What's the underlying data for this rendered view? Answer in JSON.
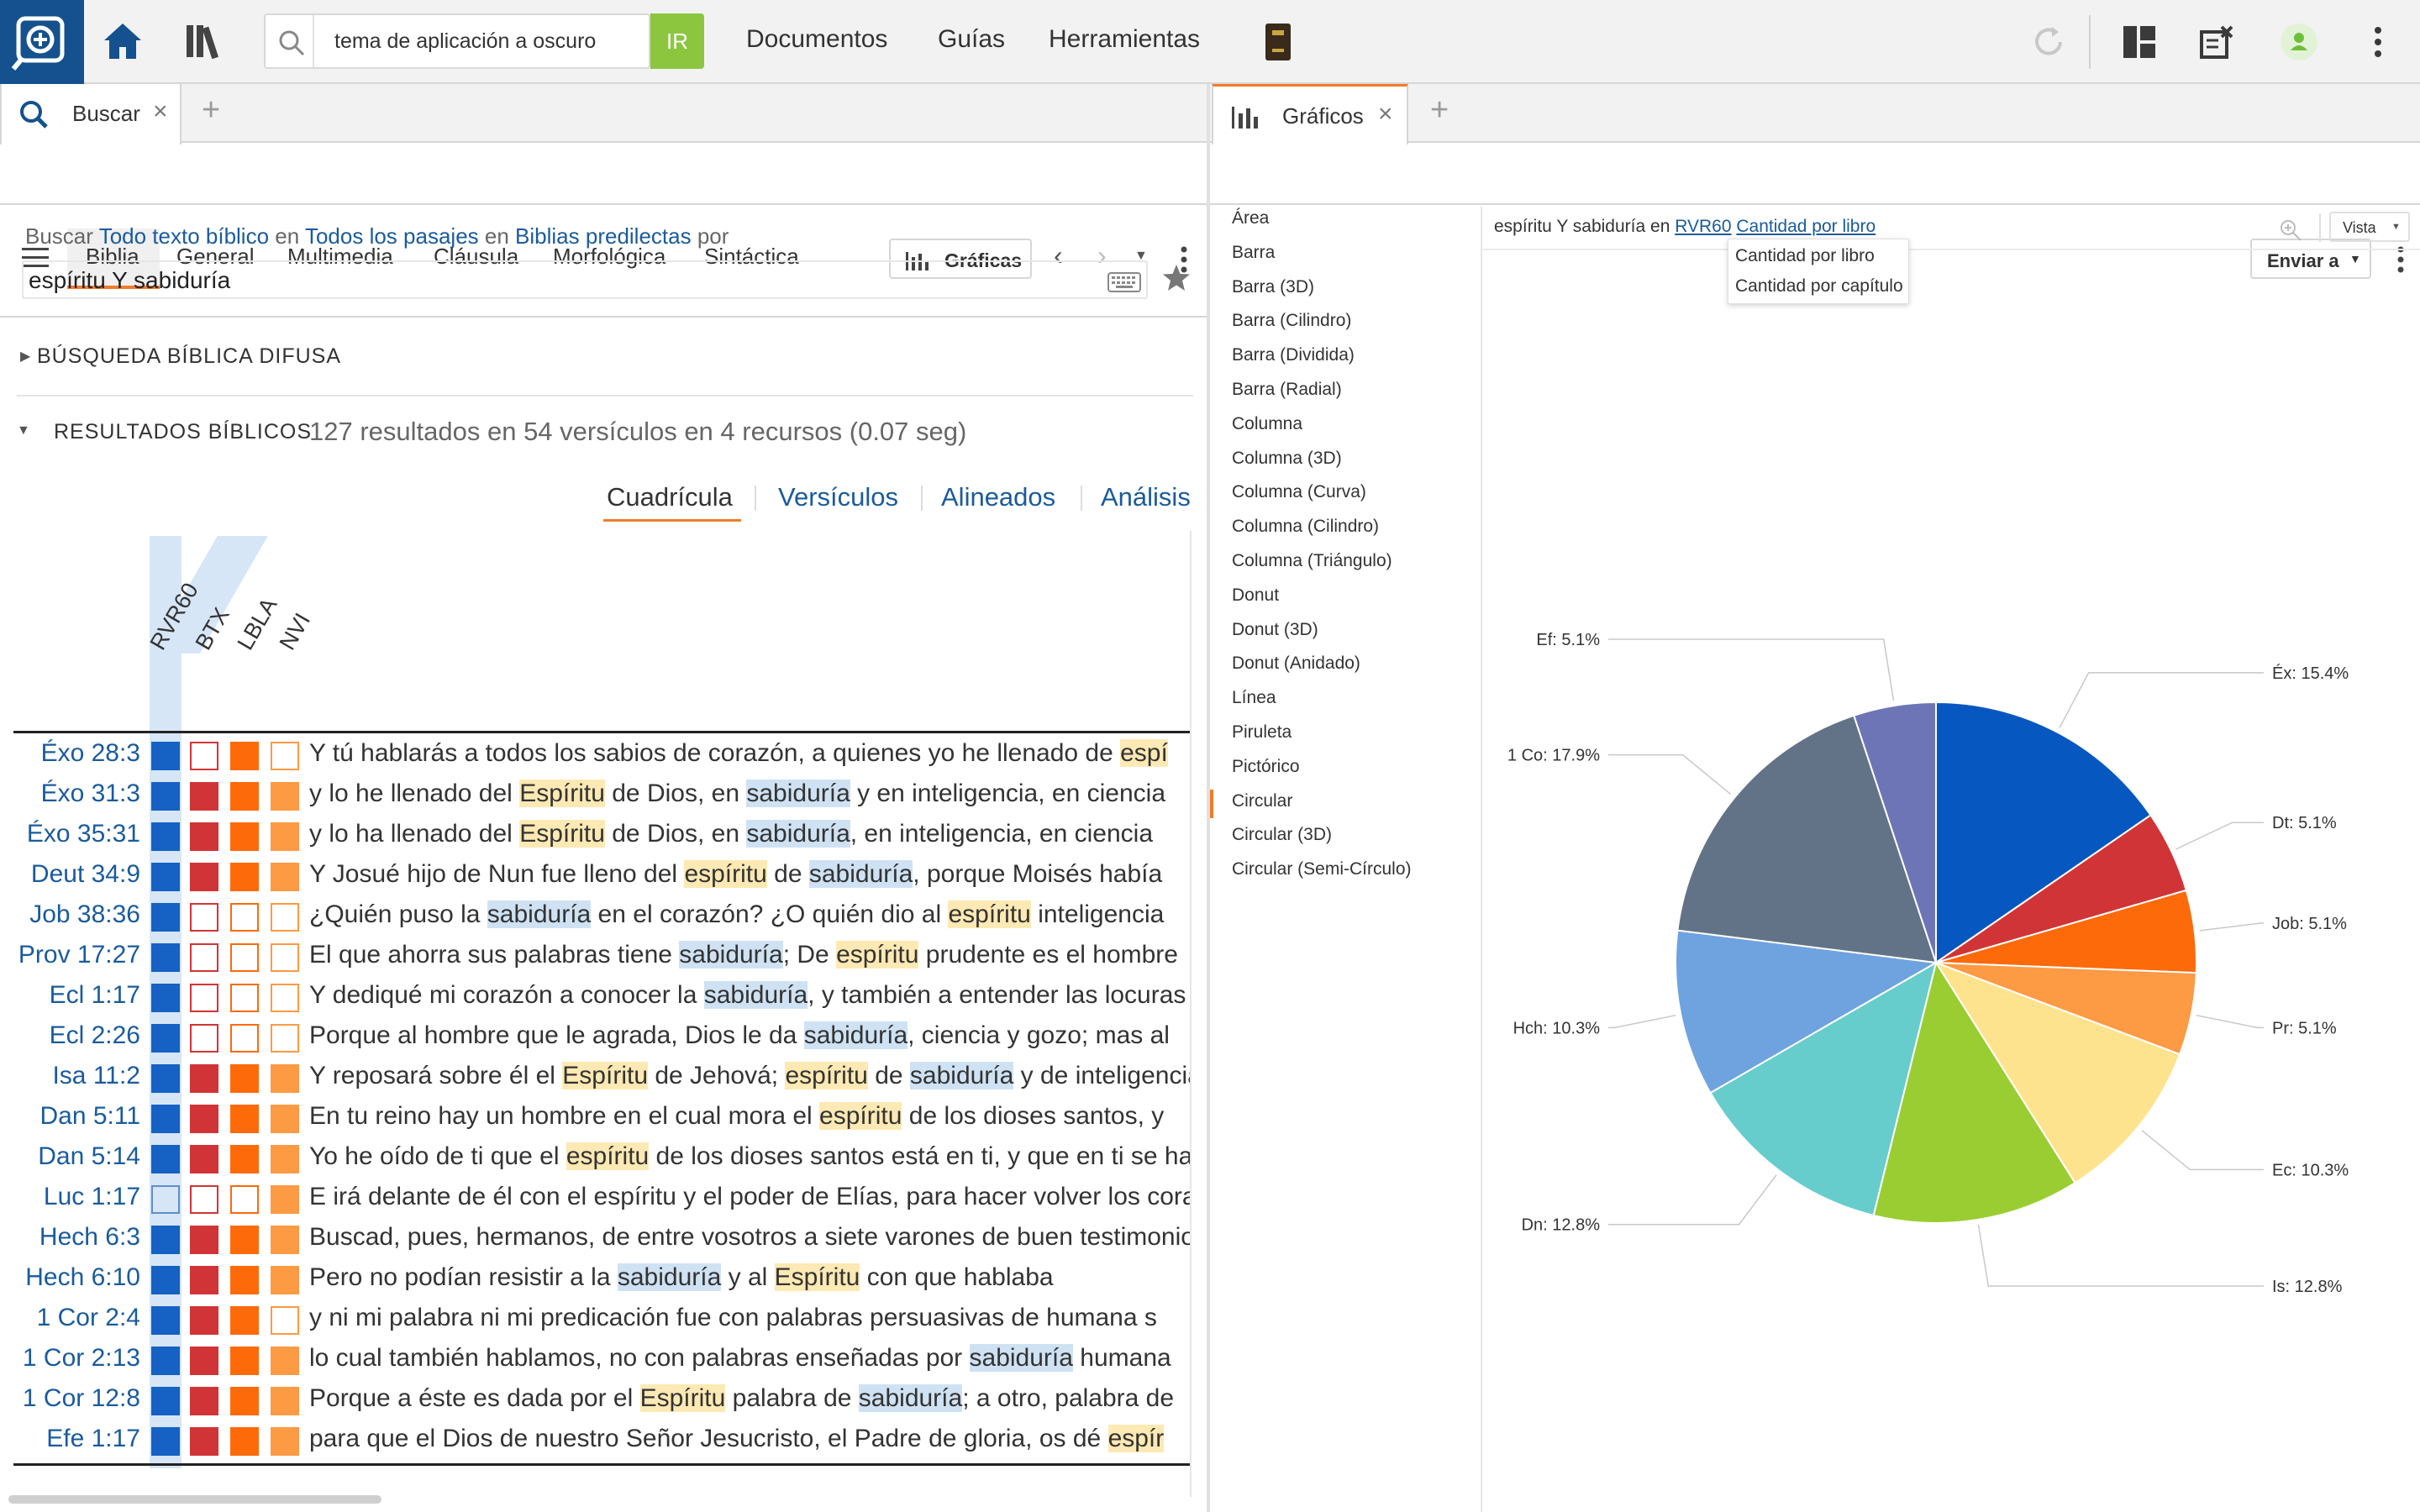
{
  "topbar": {
    "search_text": "tema de aplicación a oscuro",
    "go_label": "IR",
    "nav": [
      "Documentos",
      "Guías",
      "Herramientas"
    ]
  },
  "left_panel": {
    "tab_label": "Buscar",
    "subtabs": [
      "Biblia",
      "General",
      "Multimedia",
      "Cláusula",
      "Morfológica",
      "Sintáctica"
    ],
    "graficas_label": "Gráficas",
    "criteria": {
      "buscar": "Buscar",
      "scope": "Todo texto bíblico",
      "en1": "en",
      "range": "Todos los pasajes",
      "en2": "en",
      "collection": "Biblias predilectas",
      "por": "por"
    },
    "query": "espíritu Y sabiduría",
    "fuzzy_header": "BÚSQUEDA BÍBLICA DIFUSA",
    "results_header": "RESULTADOS BÍBLICOS",
    "results_summary": "127 resultados en 54 versículos en 4 recursos (0.07 seg)",
    "view_tabs": [
      "Cuadrícula",
      "Versículos",
      "Alineados",
      "Análisis"
    ],
    "versions": [
      "RVR60",
      "BTX",
      "LBLA",
      "NVI"
    ],
    "rows": [
      {
        "ref": "Éxo 28:3",
        "c": [
          "f",
          "o",
          "f",
          "o"
        ],
        "t": [
          [
            "Y tú hablarás a todos los sabios de corazón, a quienes yo he llenado de ",
            ""
          ],
          [
            "espí",
            "y"
          ]
        ]
      },
      {
        "ref": "Éxo 31:3",
        "c": [
          "f",
          "f",
          "f",
          "f"
        ],
        "t": [
          [
            "y lo he llenado del ",
            ""
          ],
          [
            "Espíritu",
            "y"
          ],
          [
            " de Dios, en ",
            ""
          ],
          [
            "sabiduría",
            "b"
          ],
          [
            " y en inteligencia, en ciencia",
            ""
          ]
        ]
      },
      {
        "ref": "Éxo 35:31",
        "c": [
          "f",
          "f",
          "f",
          "f"
        ],
        "t": [
          [
            "y lo ha llenado del ",
            ""
          ],
          [
            "Espíritu",
            "y"
          ],
          [
            " de Dios, en ",
            ""
          ],
          [
            "sabiduría",
            "b"
          ],
          [
            ", en inteligencia, en ciencia",
            ""
          ]
        ]
      },
      {
        "ref": "Deut 34:9",
        "c": [
          "f",
          "f",
          "f",
          "f"
        ],
        "t": [
          [
            "Y Josué hijo de Nun fue lleno del ",
            ""
          ],
          [
            "espíritu",
            "y"
          ],
          [
            " de ",
            ""
          ],
          [
            "sabiduría",
            "b"
          ],
          [
            ", porque Moisés había",
            ""
          ]
        ]
      },
      {
        "ref": "Job 38:36",
        "c": [
          "f",
          "o",
          "o",
          "o"
        ],
        "t": [
          [
            "¿Quién puso la ",
            ""
          ],
          [
            "sabiduría",
            "b"
          ],
          [
            " en el corazón? ¿O quién dio al ",
            ""
          ],
          [
            "espíritu",
            "y"
          ],
          [
            " inteligencia",
            ""
          ]
        ]
      },
      {
        "ref": "Prov 17:27",
        "c": [
          "f",
          "o",
          "o",
          "o"
        ],
        "t": [
          [
            "El que ahorra sus palabras tiene ",
            ""
          ],
          [
            "sabiduría",
            "b"
          ],
          [
            "; De ",
            ""
          ],
          [
            "espíritu",
            "y"
          ],
          [
            " prudente es el hombre",
            ""
          ]
        ]
      },
      {
        "ref": "Ecl 1:17",
        "c": [
          "f",
          "o",
          "o",
          "o"
        ],
        "t": [
          [
            "Y dediqué mi corazón a conocer la ",
            ""
          ],
          [
            "sabiduría",
            "b"
          ],
          [
            ", y también a entender las locuras",
            ""
          ]
        ]
      },
      {
        "ref": "Ecl 2:26",
        "c": [
          "f",
          "o",
          "o",
          "o"
        ],
        "t": [
          [
            "Porque al hombre que le agrada, Dios le da ",
            ""
          ],
          [
            "sabiduría",
            "b"
          ],
          [
            ", ciencia y gozo; mas al",
            ""
          ]
        ]
      },
      {
        "ref": "Isa 11:2",
        "c": [
          "f",
          "f",
          "f",
          "f"
        ],
        "t": [
          [
            "Y reposará sobre él el ",
            ""
          ],
          [
            "Espíritu",
            "y"
          ],
          [
            " de Jehová; ",
            ""
          ],
          [
            "espíritu",
            "y"
          ],
          [
            " de ",
            ""
          ],
          [
            "sabiduría",
            "b"
          ],
          [
            " y de inteligencia",
            ""
          ]
        ]
      },
      {
        "ref": "Dan 5:11",
        "c": [
          "f",
          "f",
          "f",
          "f"
        ],
        "t": [
          [
            "En tu reino hay un hombre en el cual mora el ",
            ""
          ],
          [
            "espíritu",
            "y"
          ],
          [
            " de los dioses santos, y",
            ""
          ]
        ]
      },
      {
        "ref": "Dan 5:14",
        "c": [
          "f",
          "f",
          "f",
          "f"
        ],
        "t": [
          [
            "Yo he oído de ti que el ",
            ""
          ],
          [
            "espíritu",
            "y"
          ],
          [
            " de los dioses santos está en ti, y que en ti se halló",
            ""
          ]
        ]
      },
      {
        "ref": "Luc 1:17",
        "c": [
          "o",
          "o",
          "o",
          "f"
        ],
        "t": [
          [
            "E irá delante de él con el espíritu y el poder de Elías, para hacer volver los corazones",
            ""
          ]
        ]
      },
      {
        "ref": "Hech 6:3",
        "c": [
          "f",
          "f",
          "f",
          "f"
        ],
        "t": [
          [
            "Buscad, pues, hermanos, de entre vosotros a siete varones de buen testimonio",
            ""
          ]
        ]
      },
      {
        "ref": "Hech 6:10",
        "c": [
          "f",
          "f",
          "f",
          "f"
        ],
        "t": [
          [
            "Pero no podían resistir a la ",
            ""
          ],
          [
            "sabiduría",
            "b"
          ],
          [
            " y al ",
            ""
          ],
          [
            "Espíritu",
            "y"
          ],
          [
            " con que hablaba",
            ""
          ]
        ]
      },
      {
        "ref": "1 Cor 2:4",
        "c": [
          "f",
          "f",
          "f",
          "o"
        ],
        "t": [
          [
            "y ni mi palabra ni mi predicación fue con palabras persuasivas de humana s",
            ""
          ]
        ]
      },
      {
        "ref": "1 Cor 2:13",
        "c": [
          "f",
          "f",
          "f",
          "f"
        ],
        "t": [
          [
            "lo cual también hablamos, no con palabras enseñadas por ",
            ""
          ],
          [
            "sabiduría",
            "b"
          ],
          [
            " humana",
            ""
          ]
        ]
      },
      {
        "ref": "1 Cor 12:8",
        "c": [
          "f",
          "f",
          "f",
          "f"
        ],
        "t": [
          [
            "Porque a éste es dada por el ",
            ""
          ],
          [
            "Espíritu",
            "y"
          ],
          [
            " palabra de ",
            ""
          ],
          [
            "sabiduría",
            "b"
          ],
          [
            "; a otro, palabra de",
            ""
          ]
        ]
      },
      {
        "ref": "Efe 1:17",
        "c": [
          "f",
          "f",
          "f",
          "f"
        ],
        "t": [
          [
            "para que el Dios de nuestro Señor Jesucristo, el Padre de gloria, os dé ",
            ""
          ],
          [
            "espír",
            "y"
          ]
        ]
      }
    ]
  },
  "right_panel": {
    "tab_label": "Gráficos",
    "enviar_label": "Enviar a",
    "vista_label": "Vista",
    "chart_types": [
      "Área",
      "Barra",
      "Barra (3D)",
      "Barra (Cilindro)",
      "Barra (Dividida)",
      "Barra (Radial)",
      "Columna",
      "Columna (3D)",
      "Columna (Curva)",
      "Columna (Cilindro)",
      "Columna (Triángulo)",
      "Donut",
      "Donut (3D)",
      "Donut (Anidado)",
      "Línea",
      "Piruleta",
      "Pictórico",
      "Circular",
      "Circular (3D)",
      "Circular (Semi-Círculo)"
    ],
    "selected_chart_type": "Circular",
    "query_text": "espíritu Y sabiduría",
    "en": "en",
    "version_link": "RVR60",
    "count_link": "Cantidad por libro",
    "dropdown_options": [
      "Cantidad por libro",
      "Cantidad por capítulo"
    ]
  },
  "chart_data": {
    "type": "pie",
    "slices": [
      {
        "label": "Éx",
        "value": 15.4,
        "text": "Éx: 15.4%",
        "color": "#0757c0"
      },
      {
        "label": "Dt",
        "value": 5.1,
        "text": "Dt: 5.1%",
        "color": "#d13436"
      },
      {
        "label": "Job",
        "value": 5.1,
        "text": "Job: 5.1%",
        "color": "#fd6a0a"
      },
      {
        "label": "Pr",
        "value": 5.1,
        "text": "Pr: 5.1%",
        "color": "#fd9a44"
      },
      {
        "label": "Ec",
        "value": 10.3,
        "text": "Ec: 10.3%",
        "color": "#fee38f"
      },
      {
        "label": "Is",
        "value": 12.8,
        "text": "Is: 12.8%",
        "color": "#9acd32"
      },
      {
        "label": "Dn",
        "value": 12.8,
        "text": "Dn: 12.8%",
        "color": "#66cdcc"
      },
      {
        "label": "Hch",
        "value": 10.3,
        "text": "Hch: 10.3%",
        "color": "#6ea3e0"
      },
      {
        "label": "1 Co",
        "value": 17.9,
        "text": "1 Co: 17.9%",
        "color": "#627388"
      },
      {
        "label": "Ef",
        "value": 5.1,
        "text": "Ef: 5.1%",
        "color": "#6e75b6"
      }
    ]
  }
}
